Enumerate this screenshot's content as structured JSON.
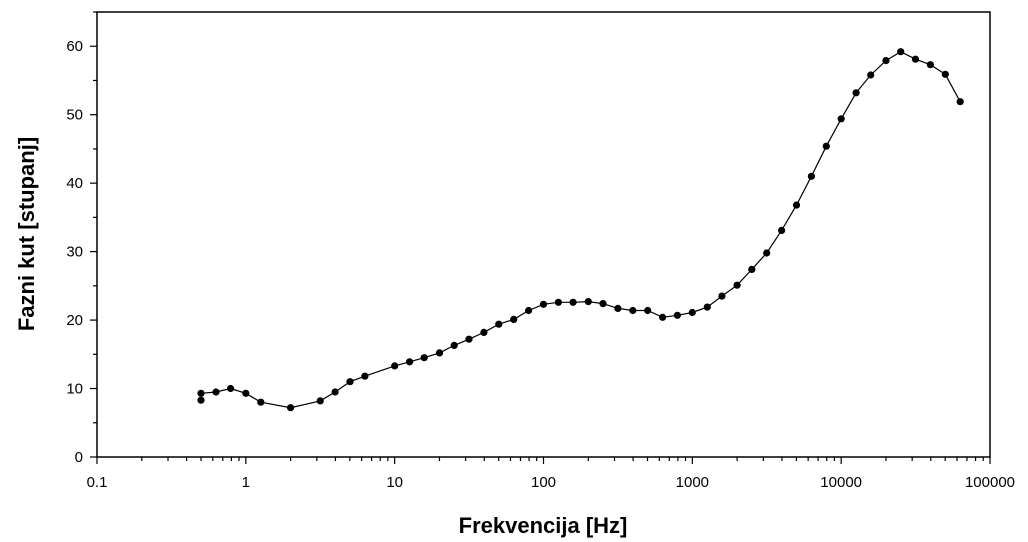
{
  "chart_data": {
    "type": "line",
    "title": "",
    "xlabel": "Frekvencija [Hz]",
    "ylabel": "Fazni kut [stupanj]",
    "x_scale": "log",
    "xlim": [
      0.1,
      100000
    ],
    "ylim": [
      0,
      65
    ],
    "x_ticks": [
      0.1,
      1,
      10,
      100,
      1000,
      10000,
      100000
    ],
    "x_tick_labels": [
      "0.1",
      "1",
      "10",
      "100",
      "1000",
      "10000",
      "100000"
    ],
    "y_ticks": [
      0,
      10,
      20,
      30,
      40,
      50,
      60
    ],
    "y_tick_labels": [
      "0",
      "10",
      "20",
      "30",
      "40",
      "50",
      "60"
    ],
    "grid": false,
    "legend": "none",
    "colors": {
      "line": "#000000",
      "marker": "#000000",
      "axis": "#000000"
    },
    "series": [
      {
        "marker": "circle",
        "x": [
          0.5,
          0.5,
          0.63,
          0.79,
          1.0,
          1.26,
          2.0,
          3.16,
          3.98,
          5.01,
          6.31,
          10,
          12.6,
          15.8,
          20,
          25.1,
          31.6,
          39.8,
          50.1,
          63.1,
          79.4,
          100,
          126,
          158,
          200,
          251,
          316,
          398,
          501,
          631,
          794,
          1000,
          1260,
          1580,
          2000,
          2510,
          3160,
          3980,
          5010,
          6310,
          7940,
          10000,
          12600,
          15800,
          20000,
          25100,
          31600,
          39800,
          50100,
          63100
        ],
        "y": [
          8.3,
          9.3,
          9.5,
          10.0,
          9.3,
          8.0,
          7.2,
          8.2,
          9.5,
          11.0,
          11.8,
          13.3,
          13.9,
          14.5,
          15.2,
          16.3,
          17.2,
          18.2,
          19.4,
          20.1,
          21.4,
          22.3,
          22.6,
          22.6,
          22.7,
          22.4,
          21.7,
          21.4,
          21.4,
          20.4,
          20.7,
          21.1,
          21.9,
          23.5,
          25.1,
          27.4,
          29.8,
          33.1,
          36.8,
          41.0,
          45.4,
          49.4,
          53.2,
          55.8,
          57.9,
          59.2,
          58.1,
          57.3,
          55.9,
          51.9
        ]
      }
    ]
  }
}
